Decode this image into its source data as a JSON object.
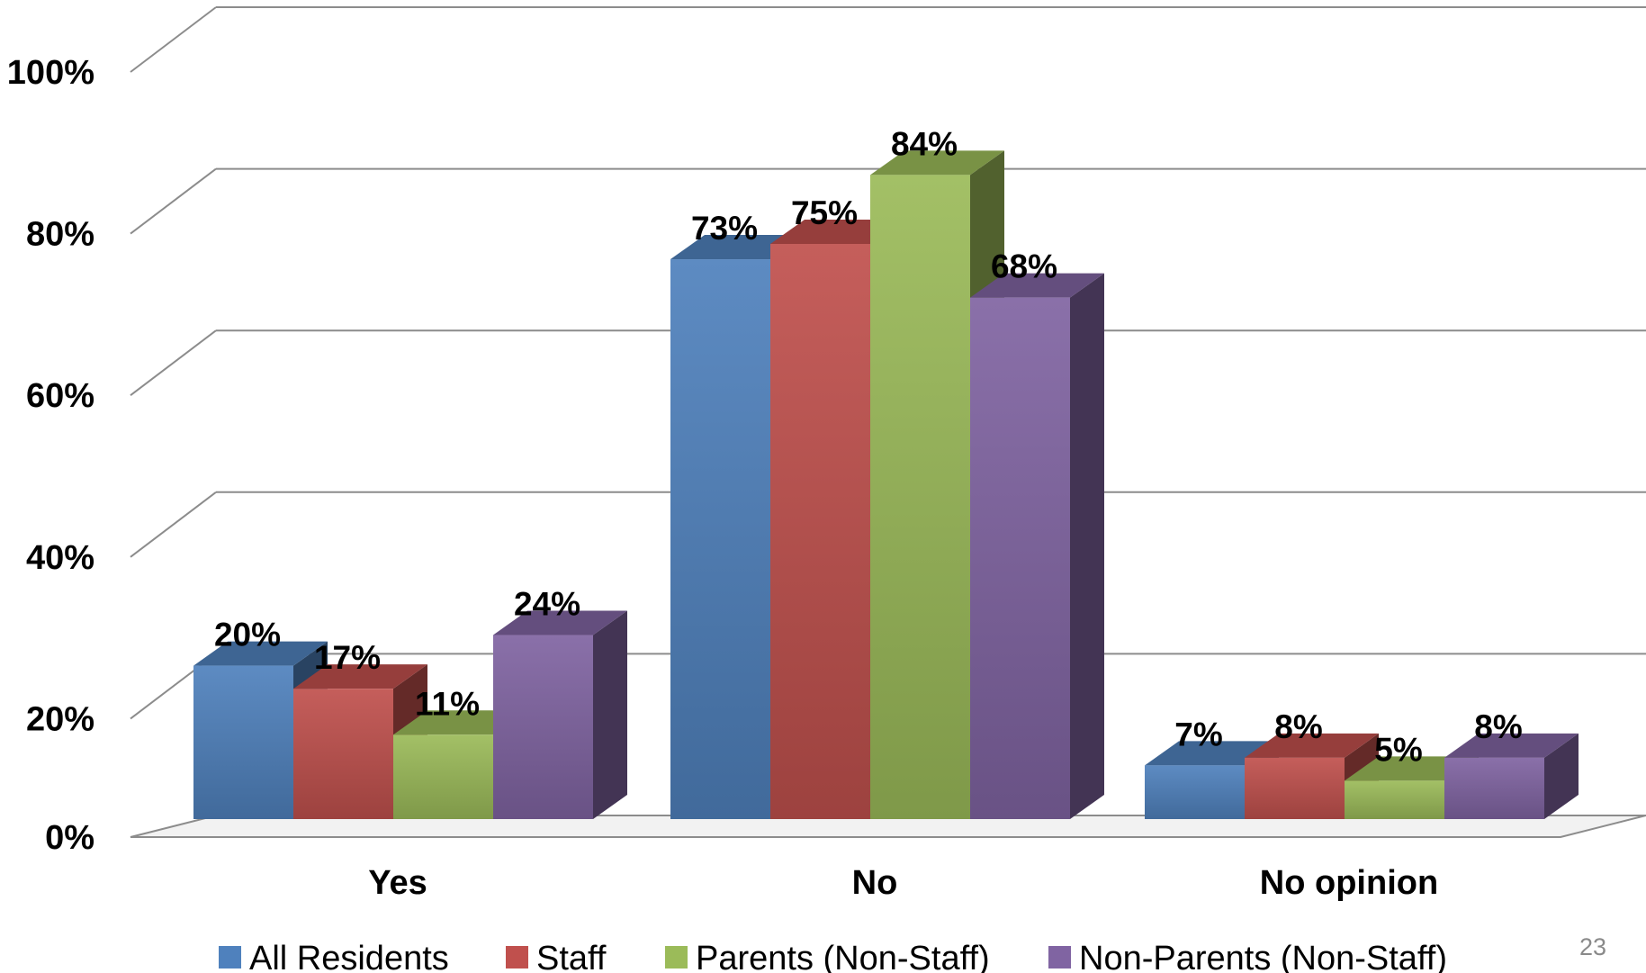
{
  "chart_data": {
    "type": "bar",
    "categories": [
      "Yes",
      "No",
      "No opinion"
    ],
    "series": [
      {
        "name": "All Residents",
        "values": [
          20,
          73,
          7
        ],
        "labels": [
          "20%",
          "73%",
          "7%"
        ],
        "color": "#4F81BD"
      },
      {
        "name": "Staff",
        "values": [
          17,
          75,
          8
        ],
        "labels": [
          "17%",
          "75%",
          "8%"
        ],
        "color": "#C0504D"
      },
      {
        "name": "Parents (Non-Staff)",
        "values": [
          11,
          84,
          5
        ],
        "labels": [
          "11%",
          "84%",
          "5%"
        ],
        "color": "#9BBB59"
      },
      {
        "name": "Non-Parents (Non-Staff)",
        "values": [
          24,
          68,
          8
        ],
        "labels": [
          "24%",
          "68%",
          "8%"
        ],
        "color": "#8064A2"
      }
    ],
    "y_ticks": [
      "0%",
      "20%",
      "40%",
      "60%",
      "80%",
      "100%"
    ],
    "ylim": [
      0,
      100
    ],
    "grid": true,
    "style": "3d-clustered-column",
    "legend_position": "bottom"
  },
  "page_number": "23"
}
